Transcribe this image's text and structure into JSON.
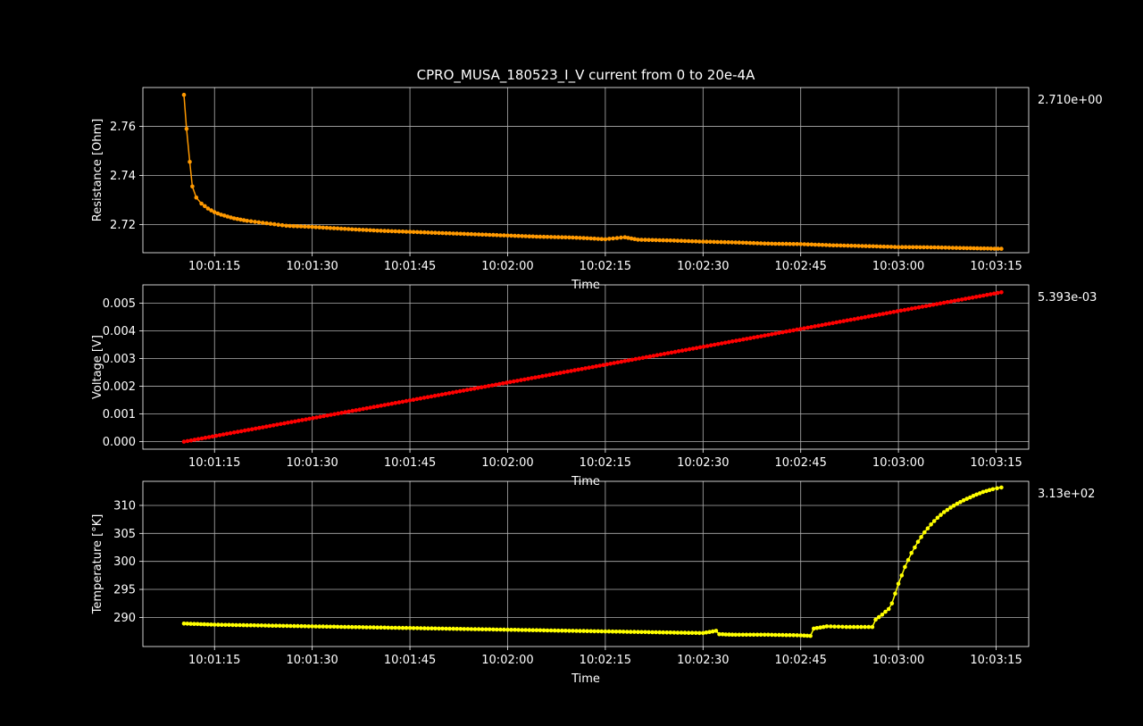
{
  "figure": {
    "title": "CPRO_MUSA_180523_I_V current from 0 to 20e-4A",
    "background": "#000000"
  },
  "chart_data": [
    {
      "type": "line",
      "title": "CPRO_MUSA_180523_I_V current from 0 to 20e-4A",
      "xlabel": "Time",
      "ylabel": "Resistance [Ohm]",
      "last_value_label": "2.710e+00",
      "color": "#ff9900",
      "grid": true,
      "x_tick_labels": [
        "10:01:15",
        "10:01:30",
        "10:01:45",
        "10:02:00",
        "10:02:15",
        "10:02:30",
        "10:02:45",
        "10:03:00",
        "10:03:15"
      ],
      "x_tick_seconds": [
        75,
        90,
        105,
        120,
        135,
        150,
        165,
        180,
        195
      ],
      "xlim_seconds_after_10_00": [
        64,
        200
      ],
      "y_ticks": [
        2.72,
        2.74,
        2.76
      ],
      "y_tick_labels": [
        "2.72",
        "2.74",
        "2.76"
      ],
      "ylim": [
        2.7085,
        2.7758
      ],
      "x_seconds_after_10_00": [
        70.3,
        70.7,
        71.2,
        71.6,
        72.2,
        73.0,
        74.0,
        75.0,
        76.0,
        78.0,
        80.0,
        83.0,
        86.0,
        90.0,
        95.0,
        100.0,
        105.0,
        110.0,
        115.0,
        120.0,
        125.0,
        130.0,
        135.0,
        138.0,
        140.0,
        145.0,
        150.0,
        155.0,
        160.0,
        165.0,
        170.0,
        175.0,
        180.0,
        185.0,
        190.0,
        195.8
      ],
      "values": [
        2.7728,
        2.759,
        2.7455,
        2.7355,
        2.731,
        2.7285,
        2.7265,
        2.725,
        2.724,
        2.7225,
        2.7215,
        2.7205,
        2.7195,
        2.719,
        2.7182,
        2.7175,
        2.717,
        2.7165,
        2.716,
        2.7155,
        2.715,
        2.7147,
        2.714,
        2.7148,
        2.7138,
        2.7135,
        2.713,
        2.7127,
        2.7122,
        2.712,
        2.7115,
        2.7112,
        2.7108,
        2.7107,
        2.7104,
        2.7101
      ]
    },
    {
      "type": "line",
      "xlabel": "Time",
      "ylabel": "Voltage [V]",
      "last_value_label": "5.393e-03",
      "color": "#ff0000",
      "grid": true,
      "x_tick_labels": [
        "10:01:15",
        "10:01:30",
        "10:01:45",
        "10:02:00",
        "10:02:15",
        "10:02:30",
        "10:02:45",
        "10:03:00",
        "10:03:15"
      ],
      "x_tick_seconds": [
        75,
        90,
        105,
        120,
        135,
        150,
        165,
        180,
        195
      ],
      "xlim_seconds_after_10_00": [
        64,
        200
      ],
      "y_ticks": [
        0.0,
        0.001,
        0.002,
        0.003,
        0.004,
        0.005
      ],
      "y_tick_labels": [
        "0.000",
        "0.001",
        "0.002",
        "0.003",
        "0.004",
        "0.005"
      ],
      "ylim": [
        -0.00027,
        0.00566
      ],
      "x_seconds_after_10_00": [
        70.3,
        195.8
      ],
      "values": [
        0.0,
        0.005393
      ]
    },
    {
      "type": "line",
      "xlabel": "Time",
      "ylabel": "Temperature [°K]",
      "last_value_label": "3.13e+02",
      "color": "#ffff00",
      "grid": true,
      "x_tick_labels": [
        "10:01:15",
        "10:01:30",
        "10:01:45",
        "10:02:00",
        "10:02:15",
        "10:02:30",
        "10:02:45",
        "10:03:00",
        "10:03:15"
      ],
      "x_tick_seconds": [
        75,
        90,
        105,
        120,
        135,
        150,
        165,
        180,
        195
      ],
      "xlim_seconds_after_10_00": [
        64,
        200
      ],
      "y_ticks": [
        290,
        295,
        300,
        305,
        310
      ],
      "y_tick_labels": [
        "290",
        "295",
        "300",
        "305",
        "310"
      ],
      "ylim": [
        284.8,
        314.3
      ],
      "x_seconds_after_10_00": [
        70.3,
        75.0,
        80.0,
        85.0,
        90.0,
        95.0,
        100.0,
        105.0,
        110.0,
        115.0,
        120.0,
        125.0,
        130.0,
        135.0,
        140.0,
        145.0,
        150.0,
        152.0,
        152.5,
        155.0,
        160.0,
        165.0,
        166.5,
        167.0,
        169.0,
        172.0,
        176.0,
        176.5,
        177.5,
        178.5,
        179.0,
        180.0,
        181.0,
        182.0,
        183.0,
        184.0,
        185.0,
        186.0,
        187.0,
        188.0,
        189.0,
        190.0,
        191.5,
        193.0,
        194.5,
        195.8
      ],
      "values": [
        288.9,
        288.7,
        288.6,
        288.5,
        288.4,
        288.3,
        288.2,
        288.1,
        288.0,
        287.9,
        287.8,
        287.7,
        287.6,
        287.5,
        287.4,
        287.3,
        287.2,
        287.6,
        287.0,
        286.9,
        286.9,
        286.8,
        286.7,
        288.0,
        288.4,
        288.3,
        288.3,
        289.6,
        290.5,
        291.5,
        292.5,
        296.0,
        299.0,
        301.5,
        303.5,
        305.2,
        306.6,
        307.8,
        308.8,
        309.6,
        310.3,
        310.9,
        311.7,
        312.4,
        312.9,
        313.2
      ]
    }
  ]
}
